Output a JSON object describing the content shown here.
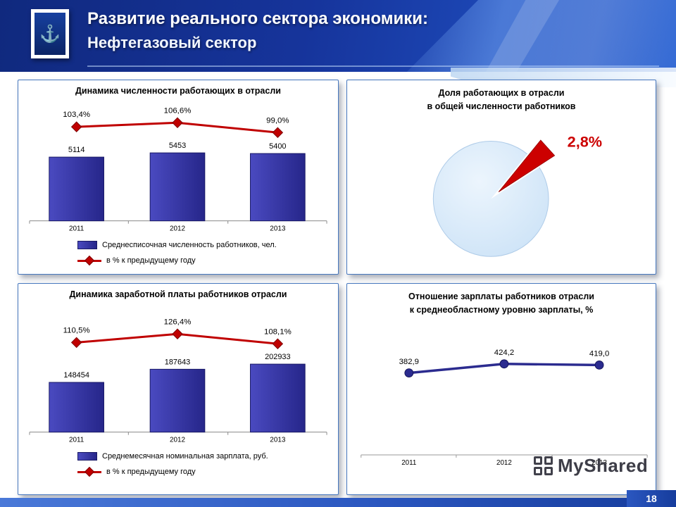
{
  "slide": {
    "title_line1": "Развитие реального сектора экономики:",
    "title_line2": "Нефтегазовый сектор",
    "page_number": "18",
    "watermark": "MyShared"
  },
  "colors": {
    "header_blue_dark": "#10297E",
    "header_blue_light": "#2B63D2",
    "bar_fill": "#32329B",
    "line_red": "#C00000",
    "pie_fill": "#D7E8F8",
    "pie_slice_red": "#CC0000",
    "series_line_blue": "#2B2B8F",
    "panel_border": "#4677BE"
  },
  "chart_data": [
    {
      "id": "employment-dynamics",
      "type": "bar",
      "title": "Динамика численности работающих в отрасли",
      "categories": [
        "2011",
        "2012",
        "2013"
      ],
      "bar_series": {
        "name": "Среднесписочная численность работников, чел.",
        "values": [
          5114,
          5453,
          5400
        ],
        "labels": [
          "5114",
          "5453",
          "5400"
        ]
      },
      "line_series": {
        "name": "в % к предыдущему году",
        "values": [
          103.4,
          106.6,
          99.0
        ],
        "labels": [
          "103,4%",
          "106,6%",
          "99,0%"
        ]
      },
      "grid": false,
      "legend_position": "bottom"
    },
    {
      "id": "employment-share",
      "type": "pie",
      "title_line1": "Доля работающих в отрасли",
      "title_line2": "в общей численности работников",
      "slices": [
        {
          "label": "2,8%",
          "value": 2.8,
          "color": "#CC0000"
        },
        {
          "label": "",
          "value": 97.2,
          "color": "#D7E8F8"
        }
      ]
    },
    {
      "id": "salary-dynamics",
      "type": "bar",
      "title": "Динамика заработной платы работников отрасли",
      "categories": [
        "2011",
        "2012",
        "2013"
      ],
      "bar_series": {
        "name": "Среднемесячная номинальная зарплата, руб.",
        "values": [
          148454,
          187643,
          202933
        ],
        "labels": [
          "148454",
          "187643",
          "202933"
        ]
      },
      "line_series": {
        "name": "в % к предыдущему году",
        "values": [
          110.5,
          126.4,
          108.1
        ],
        "labels": [
          "110,5%",
          "126,4%",
          "108,1%"
        ]
      },
      "grid": false,
      "legend_position": "bottom"
    },
    {
      "id": "salary-ratio",
      "type": "line",
      "title_line1": "Отношение зарплаты работников отрасли",
      "title_line2": "к среднеобластному уровню зарплаты, %",
      "categories": [
        "2011",
        "2012",
        "2013"
      ],
      "series": {
        "name": "Отношение зарплаты к среднеобластному уровню, %",
        "values": [
          382.9,
          424.2,
          419.0
        ],
        "labels": [
          "382,9",
          "424,2",
          "419,0"
        ]
      },
      "grid": false
    }
  ]
}
